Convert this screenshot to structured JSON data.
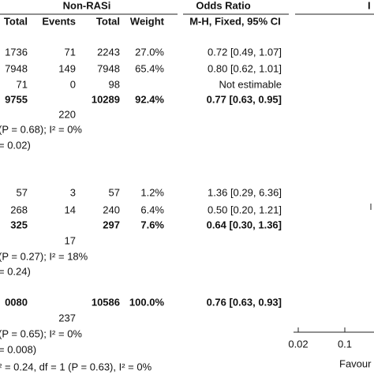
{
  "header": {
    "group": "Non-RASi",
    "effect": "Odds Ratio",
    "edge": "I",
    "columns": [
      "Total",
      "Events",
      "Total",
      "Weight",
      "M-H, Fixed, 95% CI"
    ]
  },
  "rows": [
    {
      "cells": [
        "1736",
        "71",
        "2243",
        "27.0%",
        "0.72 [0.49, 1.07]"
      ]
    },
    {
      "cells": [
        "7948",
        "149",
        "7948",
        "65.4%",
        "0.80 [0.62, 1.01]"
      ]
    },
    {
      "cells": [
        "71",
        "0",
        "98",
        null,
        "Not estimable"
      ]
    },
    {
      "cells": [
        "9755",
        null,
        "10289",
        "92.4%",
        "0.77 [0.63, 0.95]"
      ],
      "bold": true
    },
    {
      "cells": [
        null,
        "220",
        null,
        null,
        null
      ]
    },
    {
      "text": "(P = 0.68); I² = 0%"
    },
    {
      "text": "= 0.02)"
    },
    {
      "cells": [
        "57",
        "3",
        "57",
        "1.2%",
        "1.36 [0.29, 6.36]"
      ]
    },
    {
      "cells": [
        "268",
        "14",
        "240",
        "6.4%",
        "0.50 [0.20, 1.21]"
      ]
    },
    {
      "cells": [
        "325",
        null,
        "297",
        "7.6%",
        "0.64 [0.30, 1.36]"
      ],
      "bold": true
    },
    {
      "cells": [
        null,
        "17",
        null,
        null,
        null
      ]
    },
    {
      "text": "(P = 0.27); I² = 18%"
    },
    {
      "text": "= 0.24)"
    },
    {
      "cells": [
        "0080",
        null,
        "10586",
        "100.0%",
        "0.76 [0.63, 0.93]"
      ],
      "bold": true
    },
    {
      "cells": [
        null,
        "237",
        null,
        null,
        null
      ]
    },
    {
      "text": "(P = 0.65); I² = 0%"
    },
    {
      "text": "= 0.008)"
    },
    {
      "text": "² = 0.24, df = 1 (P = 0.63), I² = 0%"
    }
  ],
  "axis": {
    "ticks": [
      "0.02",
      "0.1"
    ],
    "label": "Favour"
  }
}
